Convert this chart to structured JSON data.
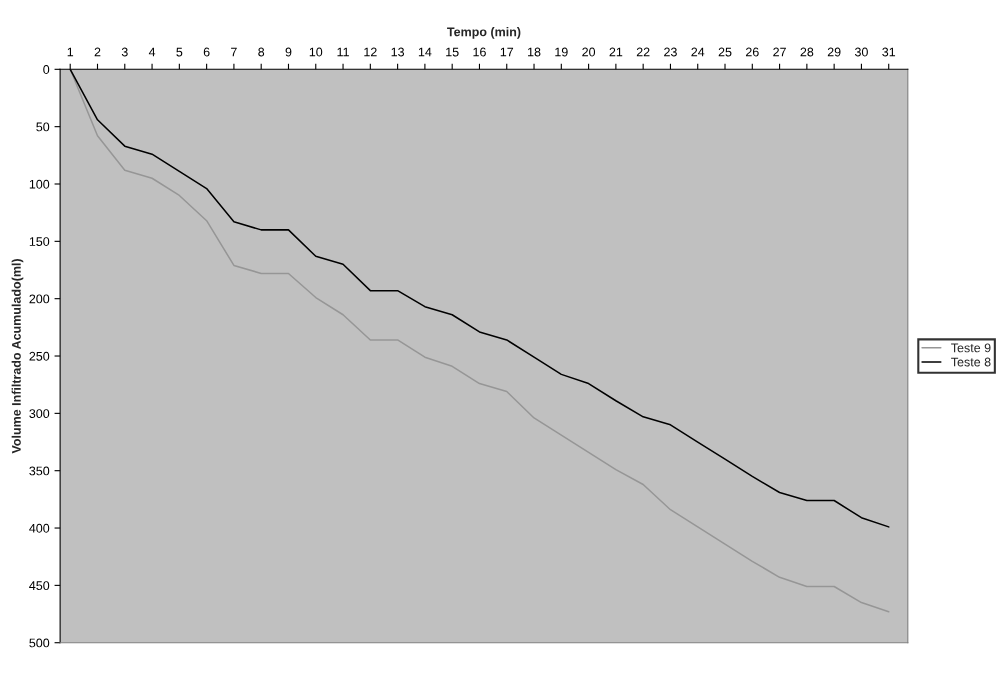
{
  "chart_data": {
    "type": "line",
    "xlabel": "Tempo (min)",
    "ylabel": "Volume Infiltrado Acumulado(ml)",
    "categories": [
      "1",
      "2",
      "3",
      "4",
      "5",
      "6",
      "7",
      "8",
      "9",
      "10",
      "11",
      "12",
      "13",
      "14",
      "15",
      "16",
      "17",
      "18",
      "19",
      "20",
      "21",
      "22",
      "23",
      "24",
      "25",
      "26",
      "27",
      "28",
      "29",
      "30",
      "31"
    ],
    "series": [
      {
        "name": "Teste 9",
        "color": "#969696",
        "values": [
          0,
          58,
          88,
          95,
          110,
          132,
          171,
          178,
          178,
          199,
          214,
          236,
          236,
          251,
          259,
          274,
          281,
          304,
          319,
          334,
          349,
          362,
          384,
          399,
          414,
          429,
          443,
          451,
          451,
          465,
          473
        ]
      },
      {
        "name": "Teste 8",
        "color": "#000000",
        "values": [
          0,
          44,
          67,
          74,
          89,
          104,
          133,
          140,
          140,
          163,
          170,
          193,
          193,
          207,
          214,
          229,
          236,
          251,
          266,
          274,
          289,
          303,
          310,
          325,
          340,
          355,
          369,
          376,
          376,
          391,
          399
        ]
      }
    ],
    "ylim": [
      500,
      0
    ],
    "yticks": [
      0,
      50,
      100,
      150,
      200,
      250,
      300,
      350,
      400,
      450,
      500
    ],
    "grid": false,
    "legend": "right",
    "line_style": "solid",
    "marker": "none"
  }
}
